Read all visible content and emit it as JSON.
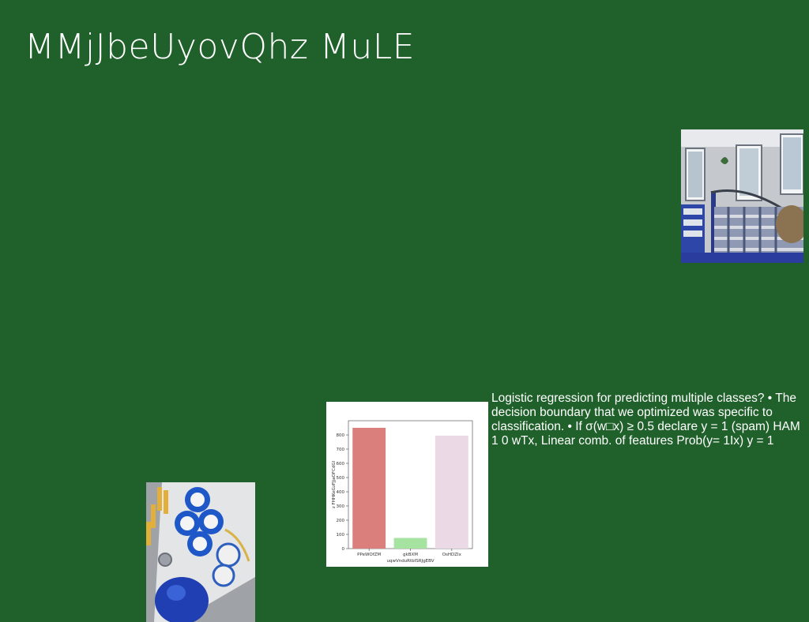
{
  "slide": {
    "title": "MMjJbeUyovQhz MuLE",
    "body_text": "Logistic regression for predicting multiple classes? • The decision boundary that we optimized was specific to classification. • If σ(w□x) ≥ 0.5 declare y = 1 (spam) HAM 1 0 wTx, Linear comb. of features Prob(y= 1Ix) y = 1"
  },
  "images": {
    "bedroom_photo": "bedroom-photo",
    "sweets_photo": "sweets-photo"
  },
  "chart_data": {
    "type": "bar",
    "categories": [
      "PPeWOfZM",
      "gkBXM",
      "OsHDZIx"
    ],
    "values": [
      850,
      75,
      795
    ],
    "colors": [
      "#db7f7d",
      "#a7e3a0",
      "#ecd9e6"
    ],
    "xlabel": "uqwVnduRtbISRJgEBV",
    "ylabel": "z FHHKeGzFJjaOFCdGl",
    "ylim": [
      0,
      900
    ],
    "yticks": [
      0,
      100,
      200,
      300,
      400,
      500,
      600,
      700,
      800
    ],
    "grid": false
  }
}
